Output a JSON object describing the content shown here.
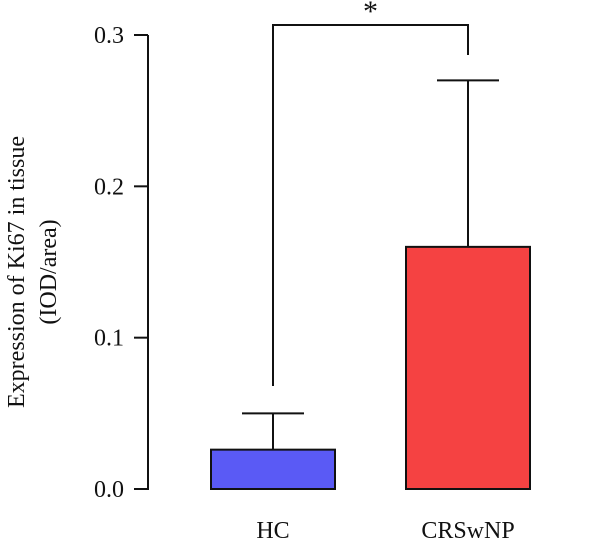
{
  "chart_data": {
    "type": "bar",
    "categories": [
      "HC",
      "CRSwNP"
    ],
    "values": [
      0.026,
      0.16
    ],
    "error_upper": [
      0.05,
      0.27
    ],
    "colors": [
      "#5a5af5",
      "#f54242"
    ],
    "ylabel_line1": "Expression of Ki67 in tissue",
    "ylabel_line2": "(IOD/area)",
    "ylim": [
      0,
      0.3
    ],
    "yticks": [
      "0.0",
      "0.1",
      "0.2",
      "0.3"
    ],
    "significance": {
      "pair": [
        "HC",
        "CRSwNP"
      ],
      "label": "*"
    },
    "grid": false
  }
}
